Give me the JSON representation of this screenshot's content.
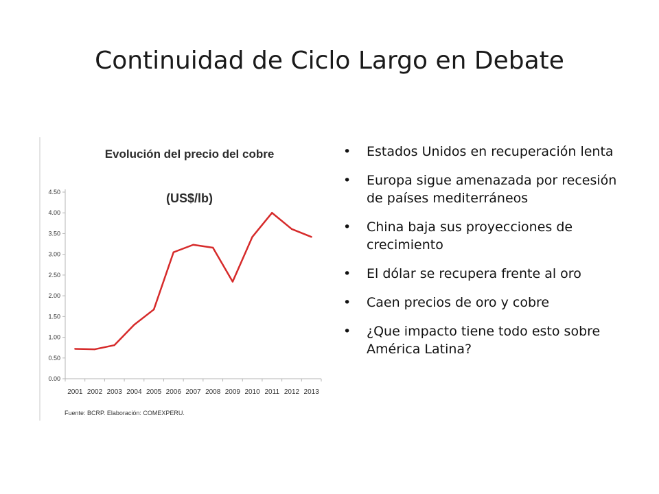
{
  "slide": {
    "title": "Continuidad de Ciclo Largo en Debate",
    "bullet_glyph": "•",
    "bullets": [
      "Estados Unidos en recuperación lenta",
      "Europa sigue amenazada por recesión de países mediterráneos",
      "China baja sus proyecciones de crecimiento",
      "El dólar se recupera frente al oro",
      "Caen precios de oro y cobre",
      "¿Que impacto tiene todo esto sobre América Latina?"
    ]
  },
  "chart_data": {
    "type": "line",
    "title": "Evolución del precio del cobre",
    "subtitle": "(US$/lb)",
    "source": "Fuente: BCRP. Elaboración: COMEXPERU.",
    "x": [
      "2001",
      "2002",
      "2003",
      "2004",
      "2005",
      "2006",
      "2007",
      "2008",
      "2009",
      "2010",
      "2011",
      "2012",
      "2013"
    ],
    "y_ticks": [
      "0.00",
      "0.50",
      "1.00",
      "1.50",
      "2.00",
      "2.50",
      "3.00",
      "3.50",
      "4.00",
      "4.50"
    ],
    "ylim": [
      0,
      4.5
    ],
    "series": [
      {
        "color": "#d62a2a",
        "values": [
          0.72,
          0.71,
          0.81,
          1.3,
          1.67,
          3.05,
          3.23,
          3.16,
          2.34,
          3.42,
          4.0,
          3.61,
          3.42
        ]
      }
    ],
    "grid": false
  }
}
